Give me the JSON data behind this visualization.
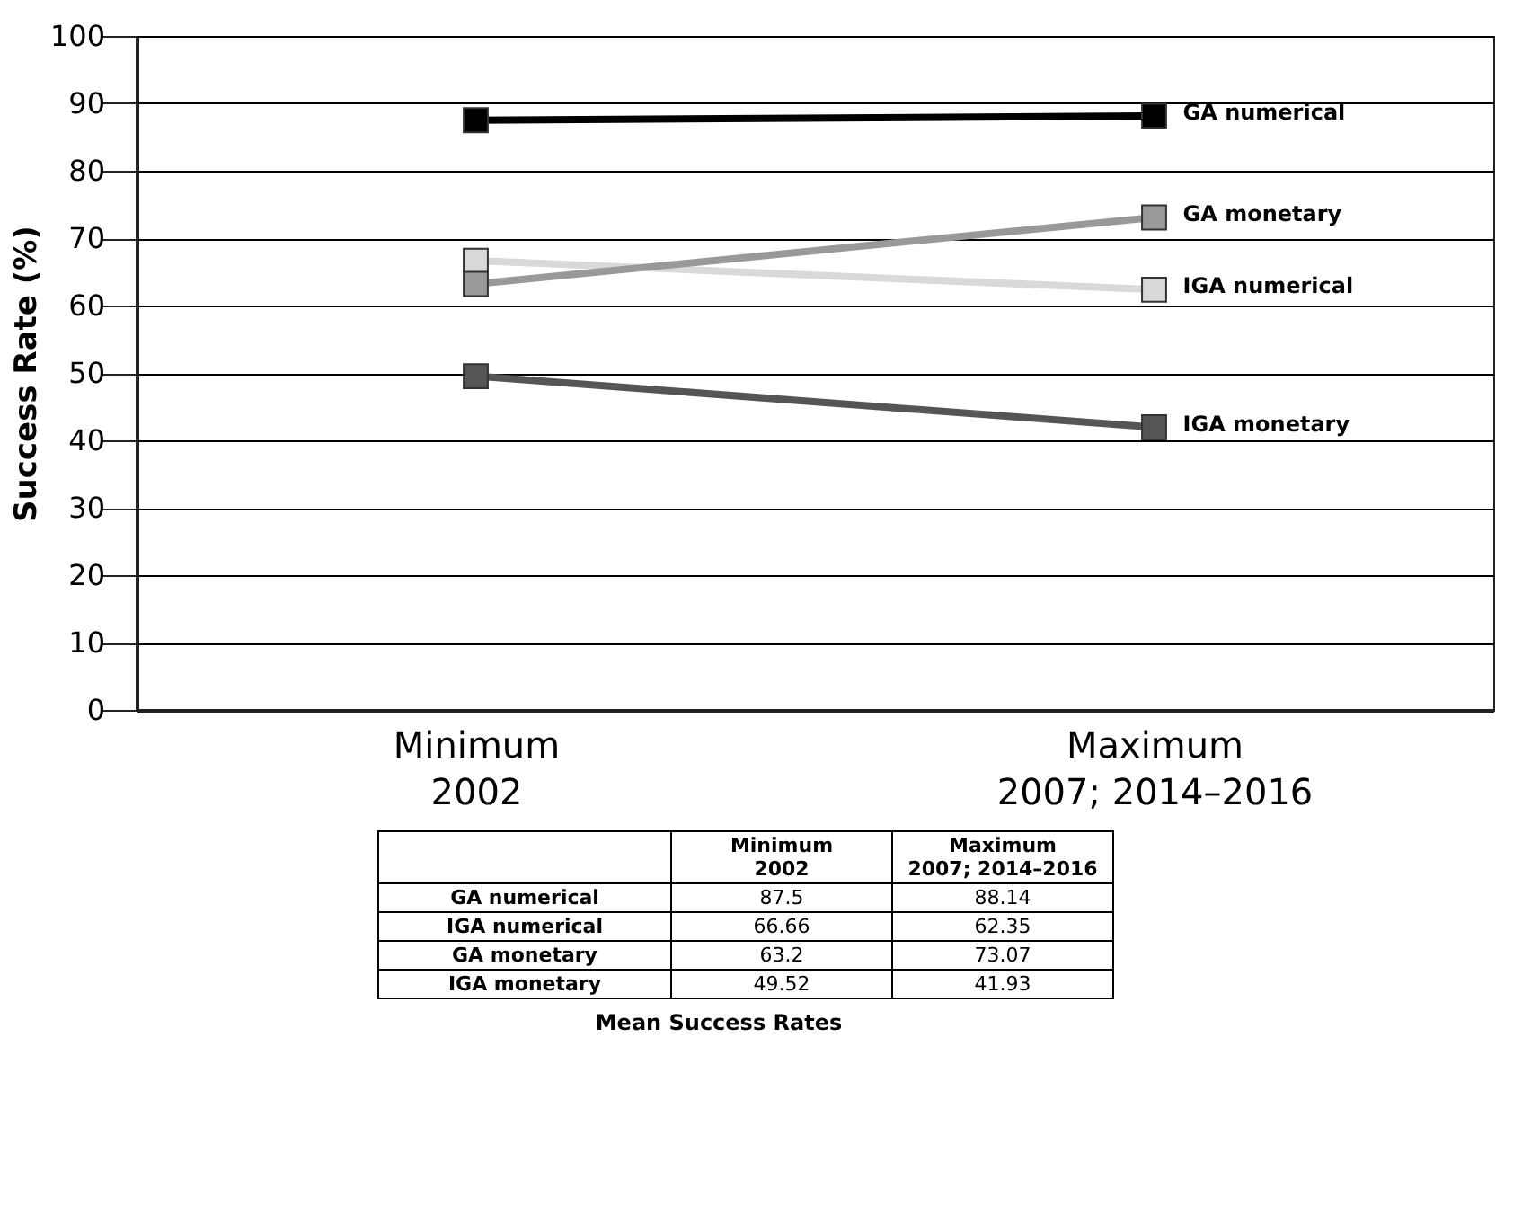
{
  "chart_data": {
    "type": "line",
    "ylabel": "Success Rate (%)",
    "categories": [
      "Minimum\n2002",
      "Maximum\n2007; 2014–2016"
    ],
    "series": [
      {
        "name": "GA numerical",
        "color": "#000000",
        "values": [
          87.5,
          88.14
        ]
      },
      {
        "name": "IGA numerical",
        "color": "#d9d9d9",
        "values": [
          66.66,
          62.35
        ]
      },
      {
        "name": "GA monetary",
        "color": "#999999",
        "values": [
          63.2,
          73.07
        ]
      },
      {
        "name": "IGA monetary",
        "color": "#555555",
        "values": [
          49.52,
          41.93
        ]
      }
    ],
    "ylim": [
      0,
      100
    ],
    "yticks": [
      0,
      10,
      20,
      30,
      40,
      50,
      60,
      70,
      80,
      90,
      100
    ],
    "grid": "y",
    "marker": "square",
    "line_style": "solid",
    "data_labels": true,
    "annotations": [
      "Mean Success Rates"
    ]
  }
}
